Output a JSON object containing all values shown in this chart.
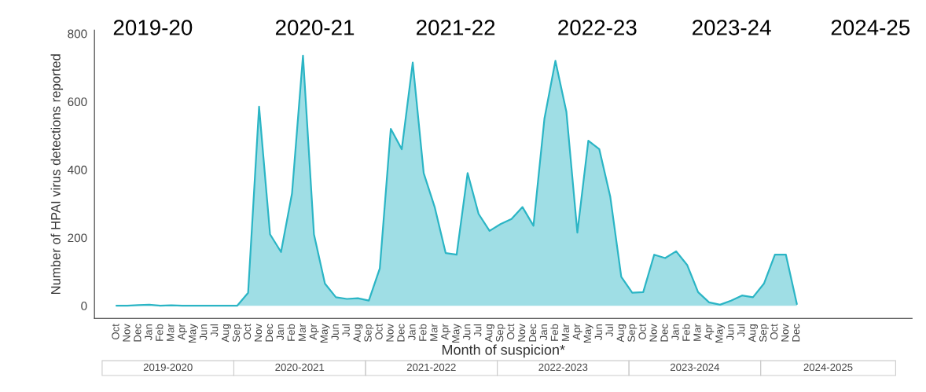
{
  "chart_data": {
    "type": "area",
    "xlabel": "Month of suspicion*",
    "ylabel": "Number of HPAI virus detections reported",
    "categories": [
      "Oct",
      "Nov",
      "Dec",
      "Jan",
      "Feb",
      "Mar",
      "Apr",
      "May",
      "Jun",
      "Jul",
      "Aug",
      "Sep",
      "Oct",
      "Nov",
      "Dec",
      "Jan",
      "Feb",
      "Mar",
      "Apr",
      "May",
      "Jun",
      "Jul",
      "Aug",
      "Sep",
      "Oct",
      "Nov",
      "Dec",
      "Jan",
      "Feb",
      "Mar",
      "Apr",
      "May",
      "Jun",
      "Jul",
      "Aug",
      "Sep",
      "Oct",
      "Nov",
      "Dec",
      "Jan",
      "Feb",
      "Mar",
      "Apr",
      "May",
      "Jun",
      "Jul",
      "Aug",
      "Sep",
      "Oct",
      "Nov",
      "Dec",
      "Jan",
      "Feb",
      "Mar",
      "Apr",
      "May",
      "Jun",
      "Jul",
      "Aug",
      "Sep",
      "Oct",
      "Nov",
      "Dec"
    ],
    "series": [
      {
        "color": "#2bb5c5",
        "values": [
          0,
          0,
          2,
          3,
          0,
          1,
          0,
          0,
          0,
          0,
          0,
          0,
          38,
          585,
          210,
          158,
          330,
          735,
          210,
          65,
          25,
          20,
          22,
          15,
          110,
          520,
          460,
          715,
          390,
          290,
          155,
          150,
          390,
          270,
          220,
          240,
          255,
          290,
          235,
          550,
          720,
          570,
          215,
          485,
          460,
          320,
          85,
          38,
          40,
          150,
          140,
          160,
          120,
          40,
          10,
          3,
          15,
          30,
          25,
          65,
          150,
          150,
          5
        ]
      }
    ],
    "ylim": [
      -37,
      810
    ],
    "yticks": [
      0,
      200,
      400,
      600,
      800
    ],
    "grid": false,
    "legend": false,
    "annotations": [
      "2019-20",
      "2020-21",
      "2021-22",
      "2022-23",
      "2023-24",
      "2024-25",
      "2019-2020",
      "2020-2021",
      "2021-2022",
      "2022-2023",
      "2023-2024",
      "2024-2025"
    ]
  }
}
